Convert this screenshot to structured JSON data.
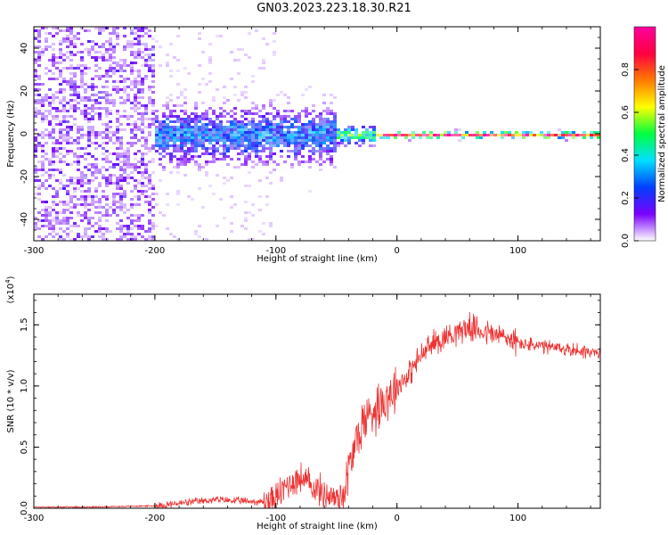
{
  "page_title": "GN03.2023.223.18.30.R21",
  "chart_data": [
    {
      "type": "heatmap",
      "xlabel": "Height of straight line (km)",
      "ylabel": "Frequency (Hz)",
      "xlim": [
        -300,
        168
      ],
      "ylim": [
        -50,
        50
      ],
      "xticks": [
        -300,
        -200,
        -100,
        0,
        100
      ],
      "yticks": [
        -40,
        -20,
        0,
        20,
        40
      ],
      "colorbar": {
        "label": "Normalized spectral amplitude",
        "range": [
          0,
          1
        ],
        "ticks": [
          "0.0",
          "0.2",
          "0.4",
          "0.6",
          "0.8"
        ],
        "tick_values": [
          0,
          0.2,
          0.4,
          0.6,
          0.8
        ],
        "colors": [
          "#ffffff",
          "#7a00ff",
          "#0040ff",
          "#00e0ff",
          "#00ff40",
          "#ffff00",
          "#ff7a00",
          "#ff0040",
          "#ff00a0"
        ]
      },
      "regions": [
        {
          "x": [
            -300,
            -200
          ],
          "freq_spread": 50,
          "amplitude": 0.15
        },
        {
          "x": [
            -200,
            -50
          ],
          "freq_spread": 12,
          "amplitude": 0.3
        },
        {
          "x": [
            -50,
            -20
          ],
          "freq_spread": 4,
          "amplitude": 0.5
        },
        {
          "x": [
            -20,
            168
          ],
          "freq_spread": 1.5,
          "amplitude": 0.95
        }
      ]
    },
    {
      "type": "line",
      "xlabel": "Height of straight line (km)",
      "ylabel": "SNR (10 * v/v)",
      "yscale_label": "(x10",
      "yscale_exp": "4",
      "yscale_close": ")",
      "xlim": [
        -300,
        168
      ],
      "ylim": [
        0,
        1.75
      ],
      "xticks": [
        -300,
        -200,
        -100,
        0,
        100
      ],
      "yticks": [
        0.0,
        0.5,
        1.0,
        1.5
      ],
      "ytick_labels": [
        "0.0",
        "0.5",
        "1.0",
        "1.5"
      ],
      "color": "#ee3333",
      "series": [
        {
          "x": [
            -300,
            -250,
            -200,
            -170,
            -150,
            -130,
            -110,
            -100,
            -90,
            -80,
            -70,
            -60,
            -50,
            -45,
            -40,
            -35,
            -30,
            -25,
            -20,
            -10,
            0,
            10,
            20,
            30,
            40,
            50,
            60,
            70,
            80,
            90,
            100,
            120,
            140,
            160,
            168
          ],
          "values": [
            0.01,
            0.01,
            0.02,
            0.05,
            0.07,
            0.06,
            0.05,
            0.08,
            0.2,
            0.25,
            0.18,
            0.12,
            0.08,
            0.1,
            0.3,
            0.5,
            0.65,
            0.75,
            0.8,
            0.9,
            1.0,
            1.1,
            1.25,
            1.35,
            1.4,
            1.45,
            1.48,
            1.45,
            1.42,
            1.4,
            1.35,
            1.32,
            1.3,
            1.28,
            1.25
          ]
        }
      ]
    }
  ]
}
